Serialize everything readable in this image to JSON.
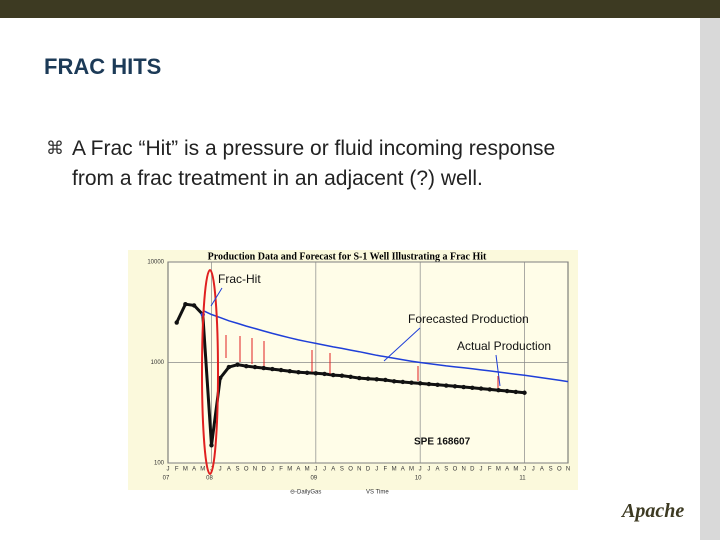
{
  "slide": {
    "title": "FRAC HITS",
    "bullet": "A Frac “Hit” is a pressure or fluid incoming response from a frac treatment in an adjacent (?) well.",
    "logo": "Apache"
  },
  "chart_data": {
    "type": "line",
    "title": "Production Data and Forecast for S-1 Well Illustrating a Frac Hit",
    "annotations": [
      "Frac-Hit",
      "SPE 168607"
    ],
    "footer": [
      "⊖-DailyGas",
      "VS Time"
    ],
    "categories": [
      "J",
      "F",
      "M",
      "A",
      "M",
      "J",
      "J",
      "A",
      "S",
      "O",
      "N",
      "D",
      "J",
      "F",
      "M",
      "A",
      "M",
      "J",
      "J",
      "A",
      "S",
      "O",
      "N",
      "D",
      "J",
      "F",
      "M",
      "A",
      "M",
      "J",
      "J",
      "A",
      "S",
      "O",
      "N",
      "D",
      "J",
      "F",
      "M",
      "A",
      "M",
      "J",
      "J",
      "A",
      "S",
      "O",
      "N"
    ],
    "years": [
      "07",
      null,
      null,
      null,
      null,
      "08",
      null,
      null,
      null,
      null,
      null,
      null,
      null,
      null,
      null,
      null,
      null,
      "09",
      null,
      null,
      null,
      null,
      null,
      null,
      null,
      null,
      null,
      null,
      null,
      "10",
      null,
      null,
      null,
      null,
      null,
      null,
      null,
      null,
      null,
      null,
      null,
      "11",
      null,
      null,
      null,
      null,
      null
    ],
    "series": [
      {
        "name": "Actual Production",
        "color": "#111111",
        "values": [
          null,
          2500,
          3800,
          3700,
          3000,
          150,
          700,
          900,
          950,
          920,
          900,
          880,
          860,
          840,
          820,
          800,
          790,
          780,
          770,
          750,
          740,
          720,
          700,
          690,
          680,
          670,
          650,
          640,
          630,
          620,
          610,
          600,
          590,
          580,
          570,
          560,
          550,
          540,
          530,
          520,
          510,
          500,
          null,
          null,
          null,
          null,
          null
        ]
      },
      {
        "name": "Forecasted Production",
        "color": "#1f3fd8",
        "values": [
          null,
          null,
          null,
          null,
          3300,
          3000,
          2800,
          2600,
          2450,
          2300,
          2180,
          2060,
          1950,
          1850,
          1760,
          1680,
          1610,
          1550,
          1490,
          1430,
          1380,
          1330,
          1280,
          1230,
          1180,
          1140,
          1100,
          1065,
          1030,
          1000,
          975,
          950,
          925,
          905,
          885,
          865,
          845,
          825,
          805,
          785,
          765,
          745,
          725,
          705,
          685,
          665,
          645
        ]
      }
    ],
    "ylim": [
      100,
      10000
    ],
    "yticks": [
      10000,
      1000,
      100
    ],
    "log_y": true,
    "grid": true
  }
}
